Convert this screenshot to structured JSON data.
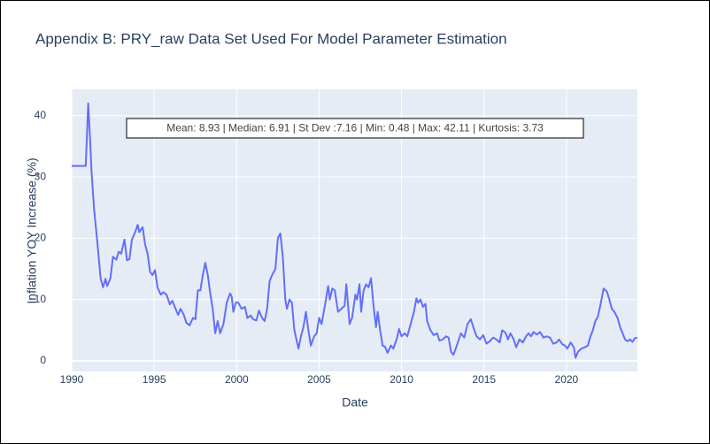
{
  "chart_data": {
    "type": "line",
    "title": "Appendix B: PRY_raw Data Set Used For Model Parameter Estimation",
    "x_label": "Date",
    "y_label": "Inflation YOY Increase (%)",
    "annotation": "Mean: 8.93 | Median: 6.91 | St Dev :7.16 | Min: 0.48 | Max: 42.11 | Kurtosis: 3.73",
    "color": "#636efa",
    "grid": true,
    "xlim": [
      1990,
      2024.3
    ],
    "xticks": [
      1990,
      1995,
      2000,
      2005,
      2010,
      2015,
      2020
    ],
    "ylim": [
      -1.73,
      44.3
    ],
    "yticks": [
      0,
      10,
      20,
      30,
      40
    ],
    "x": [
      1990,
      1990.85,
      1991,
      1991.1,
      1991.2,
      1991.35,
      1991.6,
      1991.75,
      1991.9,
      1992.05,
      1992.15,
      1992.35,
      1992.5,
      1992.7,
      1992.85,
      1993,
      1993.2,
      1993.35,
      1993.5,
      1993.65,
      1993.85,
      1994,
      1994.1,
      1994.3,
      1994.45,
      1994.6,
      1994.75,
      1994.9,
      1995.05,
      1995.2,
      1995.4,
      1995.55,
      1995.75,
      1995.95,
      1996.1,
      1996.3,
      1996.45,
      1996.6,
      1996.8,
      1996.95,
      1997.15,
      1997.35,
      1997.5,
      1997.65,
      1997.8,
      1997.95,
      1998.1,
      1998.25,
      1998.4,
      1998.55,
      1998.7,
      1998.85,
      1999,
      1999.2,
      1999.4,
      1999.6,
      1999.7,
      1999.8,
      1999.95,
      2000.1,
      2000.3,
      2000.5,
      2000.65,
      2000.85,
      2001,
      2001.2,
      2001.35,
      2001.55,
      2001.7,
      2001.85,
      2002,
      2002.15,
      2002.35,
      2002.5,
      2002.65,
      2002.8,
      2002.95,
      2003.05,
      2003.2,
      2003.35,
      2003.5,
      2003.75,
      2003.9,
      2004.05,
      2004.2,
      2004.35,
      2004.5,
      2004.7,
      2004.85,
      2005,
      2005.15,
      2005.35,
      2005.55,
      2005.65,
      2005.8,
      2005.95,
      2006.15,
      2006.35,
      2006.55,
      2006.65,
      2006.85,
      2007,
      2007.2,
      2007.3,
      2007.45,
      2007.55,
      2007.7,
      2007.85,
      2008,
      2008.15,
      2008.3,
      2008.45,
      2008.55,
      2008.7,
      2008.85,
      2009,
      2009.15,
      2009.35,
      2009.5,
      2009.7,
      2009.85,
      2010,
      2010.2,
      2010.35,
      2010.55,
      2010.75,
      2010.9,
      2011,
      2011.15,
      2011.3,
      2011.45,
      2011.55,
      2011.75,
      2011.95,
      2012.15,
      2012.3,
      2012.5,
      2012.7,
      2012.85,
      2013,
      2013.15,
      2013.35,
      2013.6,
      2013.8,
      2014,
      2014.2,
      2014.35,
      2014.55,
      2014.75,
      2014.95,
      2015.15,
      2015.35,
      2015.55,
      2015.75,
      2015.95,
      2016.1,
      2016.3,
      2016.45,
      2016.6,
      2016.8,
      2016.95,
      2017.15,
      2017.35,
      2017.55,
      2017.7,
      2017.85,
      2018,
      2018.2,
      2018.4,
      2018.6,
      2018.8,
      2019,
      2019.2,
      2019.4,
      2019.55,
      2019.75,
      2019.9,
      2020.05,
      2020.25,
      2020.45,
      2020.55,
      2020.7,
      2020.9,
      2021.1,
      2021.3,
      2021.45,
      2021.6,
      2021.75,
      2021.9,
      2022.05,
      2022.25,
      2022.45,
      2022.6,
      2022.75,
      2022.9,
      2023.1,
      2023.25,
      2023.4,
      2023.55,
      2023.7,
      2023.85,
      2024,
      2024.15,
      2024.3
    ],
    "values": [
      31.8,
      31.8,
      42,
      37,
      31,
      25,
      18,
      13.5,
      12,
      13.4,
      12.2,
      13.5,
      17,
      16.5,
      17.8,
      17.5,
      19.8,
      16.4,
      16.6,
      19.8,
      21,
      22.2,
      21,
      21.8,
      19,
      17.5,
      14.5,
      14,
      14.8,
      12,
      10.8,
      11.2,
      10.8,
      9.2,
      9.8,
      8.5,
      7.5,
      8.5,
      7.5,
      6.2,
      5.8,
      7,
      6.8,
      11.5,
      11.5,
      14,
      16,
      14,
      11,
      8.5,
      4.5,
      6.5,
      4.5,
      6,
      9.5,
      11,
      10.5,
      8,
      9.5,
      9.5,
      8.5,
      8.8,
      7,
      7.4,
      6.8,
      6.6,
      8.2,
      7,
      6.5,
      8.5,
      13,
      14,
      15,
      20,
      20.8,
      17,
      10,
      8.5,
      10,
      9.5,
      5,
      2,
      4,
      5.5,
      8,
      5,
      2.5,
      4,
      4.5,
      7,
      6,
      9,
      12.2,
      10,
      11.8,
      11.5,
      8,
      8.5,
      9,
      12.5,
      6,
      7,
      10.8,
      10,
      12.5,
      8,
      11.5,
      12.5,
      12,
      13.5,
      9,
      5.5,
      8,
      5,
      2.5,
      2.3,
      1.3,
      2.5,
      2,
      3.5,
      5.2,
      4,
      4.5,
      4,
      6,
      8,
      10.2,
      9.5,
      10,
      8.8,
      9.3,
      6.5,
      5,
      4.2,
      4.5,
      3.3,
      3.5,
      4,
      3.8,
      1.5,
      1,
      2.5,
      4.5,
      3.8,
      6,
      6.8,
      5.5,
      4,
      3.5,
      4.2,
      2.8,
      3.2,
      3.8,
      3.5,
      3,
      5,
      4.6,
      3.5,
      4.5,
      3.5,
      2.2,
      3.5,
      3,
      4,
      4.5,
      4,
      4.7,
      4.3,
      4.7,
      3.8,
      4,
      3.8,
      2.8,
      3,
      3.5,
      2.7,
      2.5,
      2,
      3,
      2.2,
      0.5,
      1.5,
      2,
      2.2,
      2.5,
      4,
      5,
      6.5,
      7.2,
      9,
      11.8,
      11.3,
      10,
      8.5,
      8,
      7,
      5.5,
      4.5,
      3.5,
      3.2,
      3.5,
      3.1,
      3.7,
      3.8
    ]
  }
}
